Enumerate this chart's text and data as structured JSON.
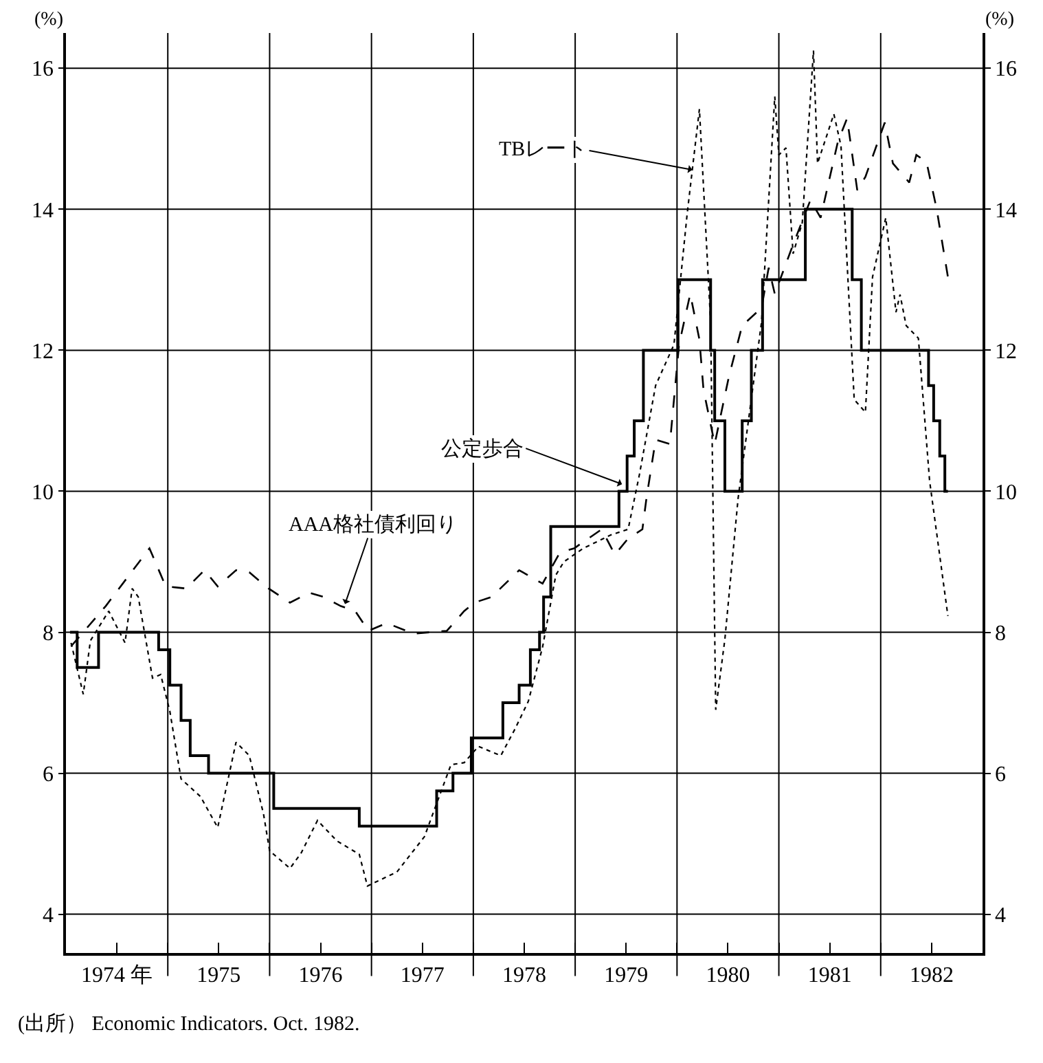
{
  "chart_data": {
    "type": "line",
    "ylabel": "(%)",
    "y2label": "(%)",
    "xlim": [
      1974,
      1983
    ],
    "ylim": [
      3.45,
      16.5
    ],
    "y2lim": [
      3.45,
      16.5
    ],
    "xticks": [
      {
        "value": 1974.5,
        "label": "1974 年"
      },
      {
        "value": 1975,
        "label": null
      },
      {
        "value": 1975.5,
        "label": "1975"
      },
      {
        "value": 1976,
        "label": null
      },
      {
        "value": 1976.5,
        "label": "1976"
      },
      {
        "value": 1977,
        "label": null
      },
      {
        "value": 1977.5,
        "label": "1977"
      },
      {
        "value": 1978,
        "label": null
      },
      {
        "value": 1978.5,
        "label": "1978"
      },
      {
        "value": 1979,
        "label": null
      },
      {
        "value": 1979.5,
        "label": "1979"
      },
      {
        "value": 1980,
        "label": null
      },
      {
        "value": 1980.5,
        "label": "1980"
      },
      {
        "value": 1981,
        "label": null
      },
      {
        "value": 1981.5,
        "label": "1981"
      },
      {
        "value": 1982,
        "label": null
      },
      {
        "value": 1982.5,
        "label": "1982"
      }
    ],
    "yticks": [
      4,
      6,
      8,
      10,
      12,
      14,
      16
    ],
    "y2ticks": [
      4,
      6,
      8,
      10,
      12,
      14,
      16
    ],
    "grid": true,
    "series": [
      {
        "type": "step",
        "color": "#000000",
        "line_style": "solid",
        "x": [
          1974.04,
          1974.11,
          1974.32,
          1974.91,
          1975.02,
          1975.13,
          1975.22,
          1975.4,
          1976.04,
          1976.88,
          1977.64,
          1977.8,
          1977.98,
          1978.29,
          1978.45,
          1978.56,
          1978.65,
          1978.69,
          1978.76,
          1979.43,
          1979.51,
          1979.58,
          1979.67,
          1980.01,
          1980.33,
          1980.37,
          1980.47,
          1980.64,
          1980.73,
          1980.84,
          1981.26,
          1981.72,
          1981.81,
          1982.47,
          1982.52,
          1982.58,
          1982.63,
          1982.66
        ],
        "values": [
          8,
          7.5,
          8,
          7.75,
          7.25,
          6.75,
          6.25,
          6,
          5.5,
          5.25,
          5.75,
          6,
          6.5,
          7,
          7.25,
          7.75,
          8,
          8.5,
          9.5,
          10,
          10.5,
          11,
          12,
          13,
          12,
          11,
          10,
          11,
          12,
          13,
          14,
          13,
          12,
          11.5,
          11,
          10.5,
          10,
          10
        ]
      },
      {
        "color": "#000000",
        "line_style": "dashed",
        "x": [
          1974.05,
          1974.39,
          1974.82,
          1974.98,
          1975.18,
          1975.36,
          1975.49,
          1975.67,
          1975.8,
          1975.99,
          1976.2,
          1976.39,
          1976.53,
          1976.7,
          1976.84,
          1976.97,
          1977.15,
          1977.41,
          1977.74,
          1977.91,
          1978.01,
          1978.18,
          1978.45,
          1978.68,
          1978.85,
          1978.99,
          1979.26,
          1979.39,
          1979.52,
          1979.66,
          1979.7,
          1979.79,
          1979.93,
          1980.02,
          1980.13,
          1980.22,
          1980.26,
          1980.37,
          1980.51,
          1980.64,
          1980.83,
          1980.9,
          1980.96,
          1981.14,
          1981.31,
          1981.41,
          1981.58,
          1981.67,
          1981.77,
          1981.85,
          1982.04,
          1982.12,
          1982.28,
          1982.35,
          1982.45,
          1982.55,
          1982.66
        ],
        "values": [
          7.8,
          8.37,
          9.19,
          8.65,
          8.62,
          8.88,
          8.65,
          8.88,
          8.85,
          8.62,
          8.42,
          8.56,
          8.5,
          8.37,
          8.3,
          8.02,
          8.13,
          7.98,
          8.02,
          8.3,
          8.42,
          8.5,
          8.88,
          8.69,
          9.13,
          9.19,
          9.46,
          9.1,
          9.33,
          9.46,
          9.9,
          10.73,
          10.67,
          12.08,
          12.8,
          12.15,
          11.44,
          10.67,
          11.63,
          12.35,
          12.6,
          13.17,
          12.8,
          13.5,
          14.13,
          13.88,
          14.96,
          15.29,
          14.27,
          14.46,
          15.23,
          14.65,
          14.38,
          14.77,
          14.67,
          14.0,
          13.04
        ]
      },
      {
        "color": "#000000",
        "line_style": "dotted",
        "x": [
          1974.05,
          1974.17,
          1974.24,
          1974.42,
          1974.58,
          1974.65,
          1974.71,
          1974.85,
          1974.93,
          1975.02,
          1975.13,
          1975.32,
          1975.49,
          1975.67,
          1975.8,
          1975.94,
          1976.0,
          1976.2,
          1976.31,
          1976.47,
          1976.66,
          1976.88,
          1976.96,
          1977.25,
          1977.52,
          1977.78,
          1977.91,
          1978.05,
          1978.27,
          1978.41,
          1978.54,
          1978.68,
          1978.81,
          1978.89,
          1979.08,
          1979.35,
          1979.52,
          1979.63,
          1979.79,
          1979.97,
          1980.1,
          1980.22,
          1980.33,
          1980.38,
          1980.47,
          1980.6,
          1980.83,
          1980.96,
          1981.0,
          1981.07,
          1981.14,
          1981.23,
          1981.34,
          1981.38,
          1981.54,
          1981.61,
          1981.74,
          1981.85,
          1981.92,
          1982.05,
          1982.15,
          1982.19,
          1982.25,
          1982.37,
          1982.48,
          1982.66
        ],
        "values": [
          7.85,
          7.12,
          7.88,
          8.3,
          7.85,
          8.62,
          8.5,
          7.35,
          7.4,
          6.88,
          5.92,
          5.67,
          5.23,
          6.44,
          6.25,
          5.42,
          4.9,
          4.65,
          4.87,
          5.33,
          5.04,
          4.85,
          4.4,
          4.6,
          5.1,
          6.12,
          6.15,
          6.38,
          6.25,
          6.63,
          7.02,
          7.79,
          8.81,
          9.0,
          9.19,
          9.38,
          9.46,
          10.23,
          11.5,
          12.08,
          13.94,
          15.42,
          12.4,
          6.9,
          7.9,
          9.9,
          12.4,
          15.6,
          14.77,
          14.87,
          13.37,
          13.81,
          16.25,
          14.65,
          15.35,
          14.9,
          11.3,
          11.12,
          13.04,
          13.88,
          12.54,
          12.79,
          12.35,
          12.17,
          10.15,
          8.23
        ]
      }
    ],
    "annotations": [
      {
        "text": "TBレート",
        "x": 1980.15,
        "y": 14.56
      },
      {
        "text": "公定歩合",
        "x": 1979.46,
        "y": 10.1
      },
      {
        "text": "AAA格社債利回り",
        "x": 1976.74,
        "y": 8.4
      },
      "(出所） Economic Indicators. Oct. 1982."
    ]
  }
}
